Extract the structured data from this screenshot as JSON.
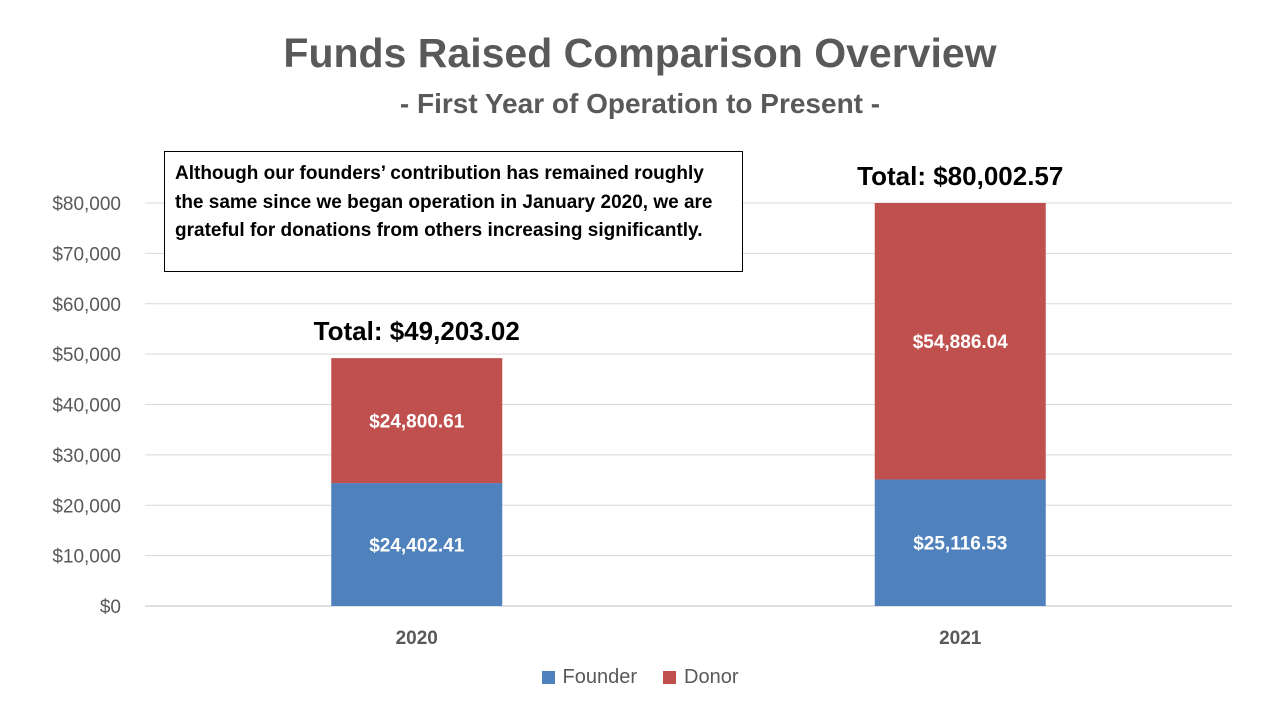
{
  "chart_data": {
    "type": "bar",
    "stacked": true,
    "title": "Funds Raised Comparison Overview",
    "subtitle": "- First Year of Operation to Present -",
    "categories": [
      "2020",
      "2021"
    ],
    "series": [
      {
        "name": "Founder",
        "color": "#4F81BD",
        "values": [
          24402.41,
          25116.53
        ],
        "labels": [
          "$24,402.41",
          "$25,116.53"
        ]
      },
      {
        "name": "Donor",
        "color": "#C0504D",
        "values": [
          24800.61,
          54886.04
        ],
        "labels": [
          "$24,800.61",
          "$54,886.04"
        ]
      }
    ],
    "totals": [
      "Total: $49,203.02",
      "Total: $80,002.57"
    ],
    "ylim": [
      0,
      80000
    ],
    "yticks": [
      0,
      10000,
      20000,
      30000,
      40000,
      50000,
      60000,
      70000,
      80000
    ],
    "ytick_labels": [
      "$0",
      "$10,000",
      "$20,000",
      "$30,000",
      "$40,000",
      "$50,000",
      "$60,000",
      "$70,000",
      "$80,000"
    ],
    "xlabel": "",
    "ylabel": "",
    "grid": true,
    "legend_position": "bottom"
  },
  "annotation": {
    "text": "Although our founders’ contribution has remained roughly the same since we began operation in January 2020, we are grateful for donations from others increasing significantly."
  },
  "legend": {
    "items": [
      {
        "label": "Founder",
        "color": "#4F81BD"
      },
      {
        "label": "Donor",
        "color": "#C0504D"
      }
    ]
  }
}
